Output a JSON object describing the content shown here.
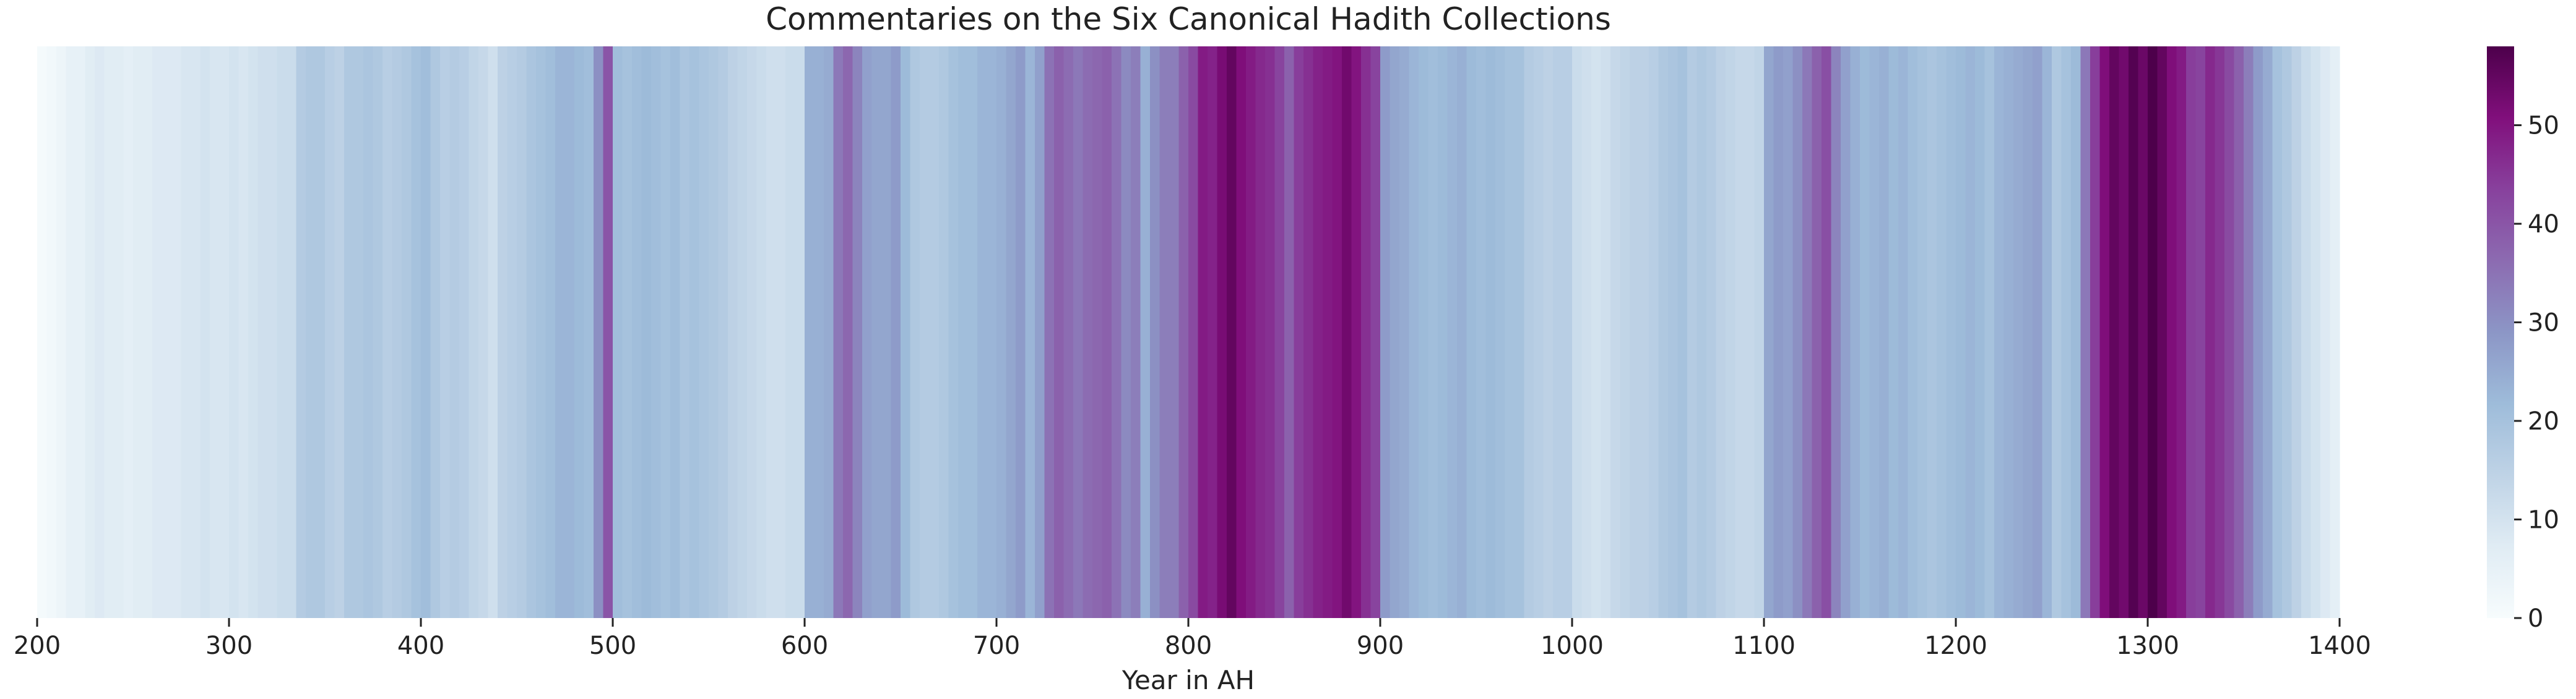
{
  "chart_data": {
    "type": "heatmap",
    "title": "Commentaries on the Six Canonical Hadith Collections",
    "xlabel": "Year in AH",
    "ylabel": "",
    "xlim": [
      200,
      1400
    ],
    "x_ticks": [
      200,
      300,
      400,
      500,
      600,
      700,
      800,
      900,
      1000,
      1100,
      1200,
      1300,
      1400
    ],
    "colorbar": {
      "range": [
        0,
        58
      ],
      "ticks": [
        0,
        10,
        20,
        30,
        40,
        50
      ],
      "colormap": "BuPu",
      "stops": [
        "#f7fcfd",
        "#e0ecf4",
        "#bfd3e6",
        "#9ebcda",
        "#8c96c6",
        "#8c6bb1",
        "#88419d",
        "#810f7c",
        "#4d004b"
      ]
    },
    "grid": false,
    "bin_width": 5,
    "x": [
      200,
      205,
      210,
      215,
      220,
      225,
      230,
      235,
      240,
      245,
      250,
      255,
      260,
      265,
      270,
      275,
      280,
      285,
      290,
      295,
      300,
      305,
      310,
      315,
      320,
      325,
      330,
      335,
      340,
      345,
      350,
      355,
      360,
      365,
      370,
      375,
      380,
      385,
      390,
      395,
      400,
      405,
      410,
      415,
      420,
      425,
      430,
      435,
      440,
      445,
      450,
      455,
      460,
      465,
      470,
      475,
      480,
      485,
      490,
      495,
      500,
      505,
      510,
      515,
      520,
      525,
      530,
      535,
      540,
      545,
      550,
      555,
      560,
      565,
      570,
      575,
      580,
      585,
      590,
      595,
      600,
      605,
      610,
      615,
      620,
      625,
      630,
      635,
      640,
      645,
      650,
      655,
      660,
      665,
      670,
      675,
      680,
      685,
      690,
      695,
      700,
      705,
      710,
      715,
      720,
      725,
      730,
      735,
      740,
      745,
      750,
      755,
      760,
      765,
      770,
      775,
      780,
      785,
      790,
      795,
      800,
      805,
      810,
      815,
      820,
      825,
      830,
      835,
      840,
      845,
      850,
      855,
      860,
      865,
      870,
      875,
      880,
      885,
      890,
      895,
      900,
      905,
      910,
      915,
      920,
      925,
      930,
      935,
      940,
      945,
      950,
      955,
      960,
      965,
      970,
      975,
      980,
      985,
      990,
      995,
      1000,
      1005,
      1010,
      1015,
      1020,
      1025,
      1030,
      1035,
      1040,
      1045,
      1050,
      1055,
      1060,
      1065,
      1070,
      1075,
      1080,
      1085,
      1090,
      1095,
      1100,
      1105,
      1110,
      1115,
      1120,
      1125,
      1130,
      1135,
      1140,
      1145,
      1150,
      1155,
      1160,
      1165,
      1170,
      1175,
      1180,
      1185,
      1190,
      1195,
      1200,
      1205,
      1210,
      1215,
      1220,
      1225,
      1230,
      1235,
      1240,
      1245,
      1250,
      1255,
      1260,
      1265,
      1270,
      1275,
      1280,
      1285,
      1290,
      1295,
      1300,
      1305,
      1310,
      1315,
      1320,
      1325,
      1330,
      1335,
      1340,
      1345,
      1350,
      1355,
      1360,
      1365,
      1370,
      1375,
      1380,
      1385,
      1390,
      1395
    ],
    "values": [
      1,
      2,
      3,
      5,
      5,
      7,
      8,
      7,
      7,
      6,
      7,
      7,
      8,
      8,
      8,
      9,
      9,
      10,
      9,
      9,
      10,
      9,
      10,
      11,
      11,
      12,
      12,
      17,
      18,
      18,
      16,
      15,
      18,
      18,
      19,
      18,
      16,
      17,
      18,
      20,
      21,
      18,
      16,
      17,
      16,
      14,
      13,
      11,
      15,
      16,
      17,
      19,
      20,
      21,
      23,
      23,
      22,
      21,
      30,
      40,
      21,
      20,
      21,
      22,
      21,
      20,
      21,
      19,
      20,
      19,
      18,
      17,
      15,
      14,
      13,
      12,
      11,
      11,
      12,
      12,
      24,
      24,
      25,
      34,
      37,
      32,
      27,
      26,
      26,
      28,
      22,
      18,
      17,
      17,
      18,
      20,
      21,
      21,
      23,
      23,
      24,
      26,
      28,
      23,
      27,
      35,
      38,
      36,
      34,
      36,
      37,
      38,
      35,
      31,
      33,
      24,
      30,
      33,
      33,
      38,
      42,
      49,
      48,
      52,
      55,
      51,
      49,
      47,
      46,
      43,
      38,
      44,
      46,
      48,
      49,
      50,
      53,
      50,
      46,
      43,
      28,
      26,
      25,
      23,
      22,
      21,
      22,
      23,
      24,
      22,
      21,
      22,
      21,
      20,
      20,
      17,
      16,
      15,
      16,
      16,
      12,
      11,
      10,
      11,
      13,
      14,
      15,
      15,
      16,
      18,
      19,
      20,
      17,
      18,
      17,
      15,
      14,
      13,
      13,
      14,
      26,
      28,
      27,
      30,
      34,
      38,
      41,
      32,
      27,
      24,
      22,
      23,
      24,
      22,
      23,
      21,
      20,
      19,
      20,
      21,
      22,
      23,
      22,
      20,
      23,
      24,
      25,
      26,
      27,
      23,
      18,
      20,
      22,
      34,
      44,
      51,
      55,
      53,
      57,
      54,
      58,
      55,
      51,
      49,
      44,
      43,
      47,
      45,
      42,
      38,
      33,
      28,
      25,
      20,
      18,
      15,
      12,
      10,
      8,
      6
    ]
  }
}
